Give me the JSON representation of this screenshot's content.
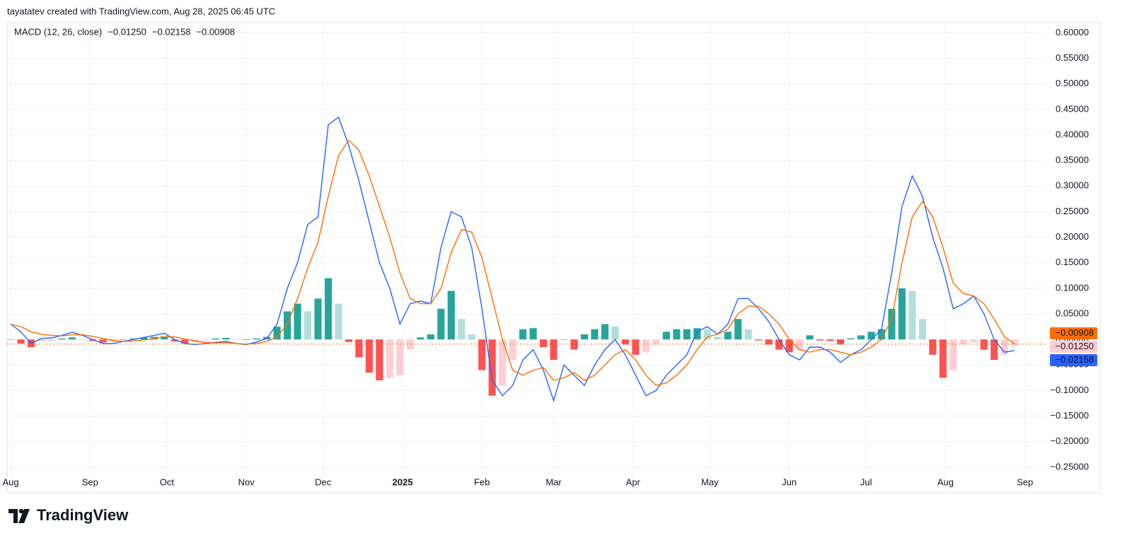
{
  "header": {
    "caption": "tayatatev created with TradingView.com, Aug 28, 2025 06:45 UTC"
  },
  "footer": {
    "brand": "TradingView"
  },
  "chart_data": {
    "type": "macd",
    "legend_title": "MACD (12, 26, close)",
    "x": [
      0,
      4,
      8,
      12,
      16,
      20,
      24,
      28,
      32,
      36,
      40,
      44,
      48,
      52,
      56,
      60,
      64,
      68,
      72,
      76,
      80,
      84,
      88,
      92,
      96,
      100,
      104,
      108,
      112,
      116,
      120,
      124,
      128,
      132,
      136,
      140,
      144,
      148,
      152,
      156,
      160,
      164,
      168,
      172,
      176,
      180,
      184,
      188,
      192,
      196,
      200,
      204,
      208,
      212,
      216,
      220,
      224,
      228,
      232,
      236,
      240,
      244,
      248,
      252,
      256,
      260,
      264,
      268,
      272,
      276,
      280,
      284,
      288,
      292,
      296,
      300,
      304,
      308,
      312,
      316,
      320,
      324,
      328,
      332,
      336,
      340,
      344,
      348,
      352,
      356,
      360,
      364,
      368,
      372,
      376,
      380,
      384,
      388,
      392
    ],
    "xlim": [
      -1.4,
      404.1
    ],
    "xticks": [
      {
        "value": 0,
        "label": "Aug"
      },
      {
        "value": 31,
        "label": "Sep"
      },
      {
        "value": 61,
        "label": "Oct"
      },
      {
        "value": 92,
        "label": "Nov"
      },
      {
        "value": 122,
        "label": "Dec"
      },
      {
        "value": 153,
        "label": "2025"
      },
      {
        "value": 184,
        "label": "Feb"
      },
      {
        "value": 212,
        "label": "Mar"
      },
      {
        "value": 243,
        "label": "Apr"
      },
      {
        "value": 273,
        "label": "May"
      },
      {
        "value": 304,
        "label": "Jun"
      },
      {
        "value": 334,
        "label": "Jul"
      },
      {
        "value": 365,
        "label": "Aug"
      },
      {
        "value": 396,
        "label": "Sep"
      }
    ],
    "ylim": [
      -0.3,
      0.62
    ],
    "yticks": [
      {
        "value": -0.25,
        "label": "−0.25000"
      },
      {
        "value": -0.2,
        "label": "−0.20000"
      },
      {
        "value": -0.15,
        "label": "−0.15000"
      },
      {
        "value": -0.1,
        "label": "−0.10000"
      },
      {
        "value": -0.05,
        "label": "−0.05000"
      },
      {
        "value": 0,
        "label": "0.00000"
      },
      {
        "value": 0.05,
        "label": "0.05000"
      },
      {
        "value": 0.1,
        "label": "0.10000"
      },
      {
        "value": 0.15,
        "label": "0.15000"
      },
      {
        "value": 0.2,
        "label": "0.20000"
      },
      {
        "value": 0.25,
        "label": "0.25000"
      },
      {
        "value": 0.3,
        "label": "0.30000"
      },
      {
        "value": 0.35,
        "label": "0.35000"
      },
      {
        "value": 0.4,
        "label": "0.40000"
      },
      {
        "value": 0.45,
        "label": "0.45000"
      },
      {
        "value": 0.5,
        "label": "0.50000"
      },
      {
        "value": 0.55,
        "label": "0.55000"
      },
      {
        "value": 0.6,
        "label": "0.60000"
      }
    ],
    "grid": true,
    "series": [
      {
        "style": "histogram",
        "colors": [
          "#26a69a",
          "#b2dfdb",
          "#ff5252",
          "#ffcdd2"
        ],
        "values": [
          0,
          -0.008,
          -0.015,
          -0.004,
          -0.003,
          0.002,
          0.004,
          0,
          -0.003,
          -0.006,
          -0.004,
          0,
          0.002,
          0.004,
          0.005,
          0.006,
          -0.004,
          -0.008,
          -0.006,
          -0.002,
          0.002,
          0.003,
          0.001,
          -0.001,
          0.002,
          0.005,
          0.025,
          0.055,
          0.07,
          0.055,
          0.08,
          0.12,
          0.07,
          -0.005,
          -0.035,
          -0.065,
          -0.08,
          -0.075,
          -0.07,
          -0.02,
          0.004,
          0.01,
          0.06,
          0.095,
          0.04,
          0.01,
          -0.06,
          -0.11,
          -0.09,
          -0.04,
          0.02,
          0.022,
          -0.015,
          -0.04,
          0,
          -0.02,
          0.01,
          0.02,
          0.03,
          0.025,
          -0.01,
          -0.03,
          -0.025,
          -0.01,
          0.015,
          0.02,
          0.02,
          0.022,
          0.02,
          0.005,
          0.015,
          0.04,
          0.02,
          -0.002,
          -0.01,
          -0.02,
          -0.025,
          -0.02,
          0.008,
          -0.002,
          -0.003,
          -0.01,
          0.002,
          0.008,
          0.015,
          0.02,
          0.06,
          0.1,
          0.095,
          0.04,
          -0.03,
          -0.075,
          -0.06,
          -0.01,
          -0.005,
          -0.02,
          -0.04,
          -0.03,
          -0.0125
        ],
        "value_labels": [
          null,
          null,
          null,
          null,
          null,
          null,
          null,
          null,
          null,
          null,
          null,
          null,
          null,
          null,
          null,
          null,
          null,
          null,
          null,
          null,
          null,
          null,
          null,
          null,
          null,
          null,
          null,
          null,
          null,
          null,
          null,
          null,
          null,
          null,
          null,
          null,
          null,
          null,
          null,
          null,
          null,
          null,
          null,
          null,
          null,
          null,
          null,
          null,
          null,
          null,
          null,
          null,
          null,
          null,
          null,
          null,
          null,
          null,
          null,
          null,
          null,
          null,
          null,
          null,
          null,
          null,
          null,
          null,
          null,
          null,
          null,
          null,
          null,
          null,
          null,
          null,
          null,
          null,
          null,
          null,
          null,
          null,
          null,
          null,
          null,
          null,
          null,
          null,
          null,
          null,
          null,
          null,
          null,
          null,
          null,
          null,
          null,
          null,
          "−0.01250"
        ]
      },
      {
        "style": "line",
        "color": "#2962ff",
        "values": [
          0.03,
          0.015,
          -0.008,
          0.002,
          0.003,
          0.008,
          0.014,
          0.008,
          0,
          -0.008,
          -0.008,
          -0.004,
          0,
          0.004,
          0.008,
          0.012,
          0,
          -0.008,
          -0.01,
          -0.008,
          -0.006,
          -0.004,
          -0.008,
          -0.01,
          -0.005,
          0.002,
          0.03,
          0.1,
          0.15,
          0.225,
          0.24,
          0.42,
          0.435,
          0.38,
          0.31,
          0.23,
          0.15,
          0.1,
          0.03,
          0.07,
          0.075,
          0.07,
          0.18,
          0.25,
          0.24,
          0.18,
          0.06,
          -0.08,
          -0.11,
          -0.09,
          -0.04,
          -0.02,
          -0.06,
          -0.12,
          -0.05,
          -0.07,
          -0.09,
          -0.05,
          -0.02,
          0,
          -0.03,
          -0.07,
          -0.11,
          -0.1,
          -0.07,
          -0.05,
          -0.03,
          0.015,
          0.025,
          0.01,
          0.03,
          0.08,
          0.08,
          0.06,
          0.035,
          0,
          -0.03,
          -0.04,
          -0.015,
          -0.015,
          -0.025,
          -0.045,
          -0.03,
          -0.02,
          0,
          0.02,
          0.13,
          0.26,
          0.32,
          0.28,
          0.2,
          0.14,
          0.06,
          0.07,
          0.085,
          0.05,
          0,
          -0.025,
          -0.02158
        ],
        "value_labels": [
          null,
          null,
          null,
          null,
          null,
          null,
          null,
          null,
          null,
          null,
          null,
          null,
          null,
          null,
          null,
          null,
          null,
          null,
          null,
          null,
          null,
          null,
          null,
          null,
          null,
          null,
          null,
          null,
          null,
          null,
          null,
          null,
          null,
          null,
          null,
          null,
          null,
          null,
          null,
          null,
          null,
          null,
          null,
          null,
          null,
          null,
          null,
          null,
          null,
          null,
          null,
          null,
          null,
          null,
          null,
          null,
          null,
          null,
          null,
          null,
          null,
          null,
          null,
          null,
          null,
          null,
          null,
          null,
          null,
          null,
          null,
          null,
          null,
          null,
          null,
          null,
          null,
          null,
          null,
          null,
          null,
          null,
          null,
          null,
          null,
          null,
          null,
          null,
          null,
          null,
          null,
          null,
          null,
          null,
          null,
          null,
          null,
          null,
          "−0.02158"
        ]
      },
      {
        "style": "line",
        "color": "#ff6d00",
        "values": [
          0.03,
          0.025,
          0.015,
          0.01,
          0.008,
          0.007,
          0.009,
          0.009,
          0.006,
          0.002,
          -0.002,
          -0.004,
          -0.003,
          -0.001,
          0.002,
          0.005,
          0.005,
          0.001,
          -0.003,
          -0.006,
          -0.007,
          -0.006,
          -0.008,
          -0.009,
          -0.008,
          -0.004,
          0.005,
          0.03,
          0.08,
          0.14,
          0.19,
          0.28,
          0.36,
          0.39,
          0.37,
          0.32,
          0.26,
          0.2,
          0.13,
          0.08,
          0.07,
          0.07,
          0.1,
          0.17,
          0.215,
          0.21,
          0.16,
          0.08,
          0,
          -0.06,
          -0.07,
          -0.06,
          -0.055,
          -0.08,
          -0.075,
          -0.065,
          -0.08,
          -0.07,
          -0.05,
          -0.03,
          -0.02,
          -0.04,
          -0.07,
          -0.09,
          -0.085,
          -0.07,
          -0.05,
          -0.02,
          0.005,
          0.01,
          0.02,
          0.05,
          0.065,
          0.065,
          0.05,
          0.03,
          0,
          -0.02,
          -0.025,
          -0.02,
          -0.02,
          -0.025,
          -0.03,
          -0.025,
          -0.015,
          0,
          0.04,
          0.15,
          0.24,
          0.27,
          0.24,
          0.18,
          0.11,
          0.09,
          0.085,
          0.07,
          0.04,
          0.005,
          -0.00908
        ],
        "value_labels": [
          null,
          null,
          null,
          null,
          null,
          null,
          null,
          null,
          null,
          null,
          null,
          null,
          null,
          null,
          null,
          null,
          null,
          null,
          null,
          null,
          null,
          null,
          null,
          null,
          null,
          null,
          null,
          null,
          null,
          null,
          null,
          null,
          null,
          null,
          null,
          null,
          null,
          null,
          null,
          null,
          null,
          null,
          null,
          null,
          null,
          null,
          null,
          null,
          null,
          null,
          null,
          null,
          null,
          null,
          null,
          null,
          null,
          null,
          null,
          null,
          null,
          null,
          null,
          null,
          null,
          null,
          null,
          null,
          null,
          null,
          null,
          null,
          null,
          null,
          null,
          null,
          null,
          null,
          null,
          null,
          null,
          null,
          null,
          null,
          null,
          null,
          null,
          null,
          null,
          null,
          null,
          null,
          null,
          null,
          null,
          null,
          null,
          null,
          "−0.00908"
        ]
      }
    ]
  }
}
